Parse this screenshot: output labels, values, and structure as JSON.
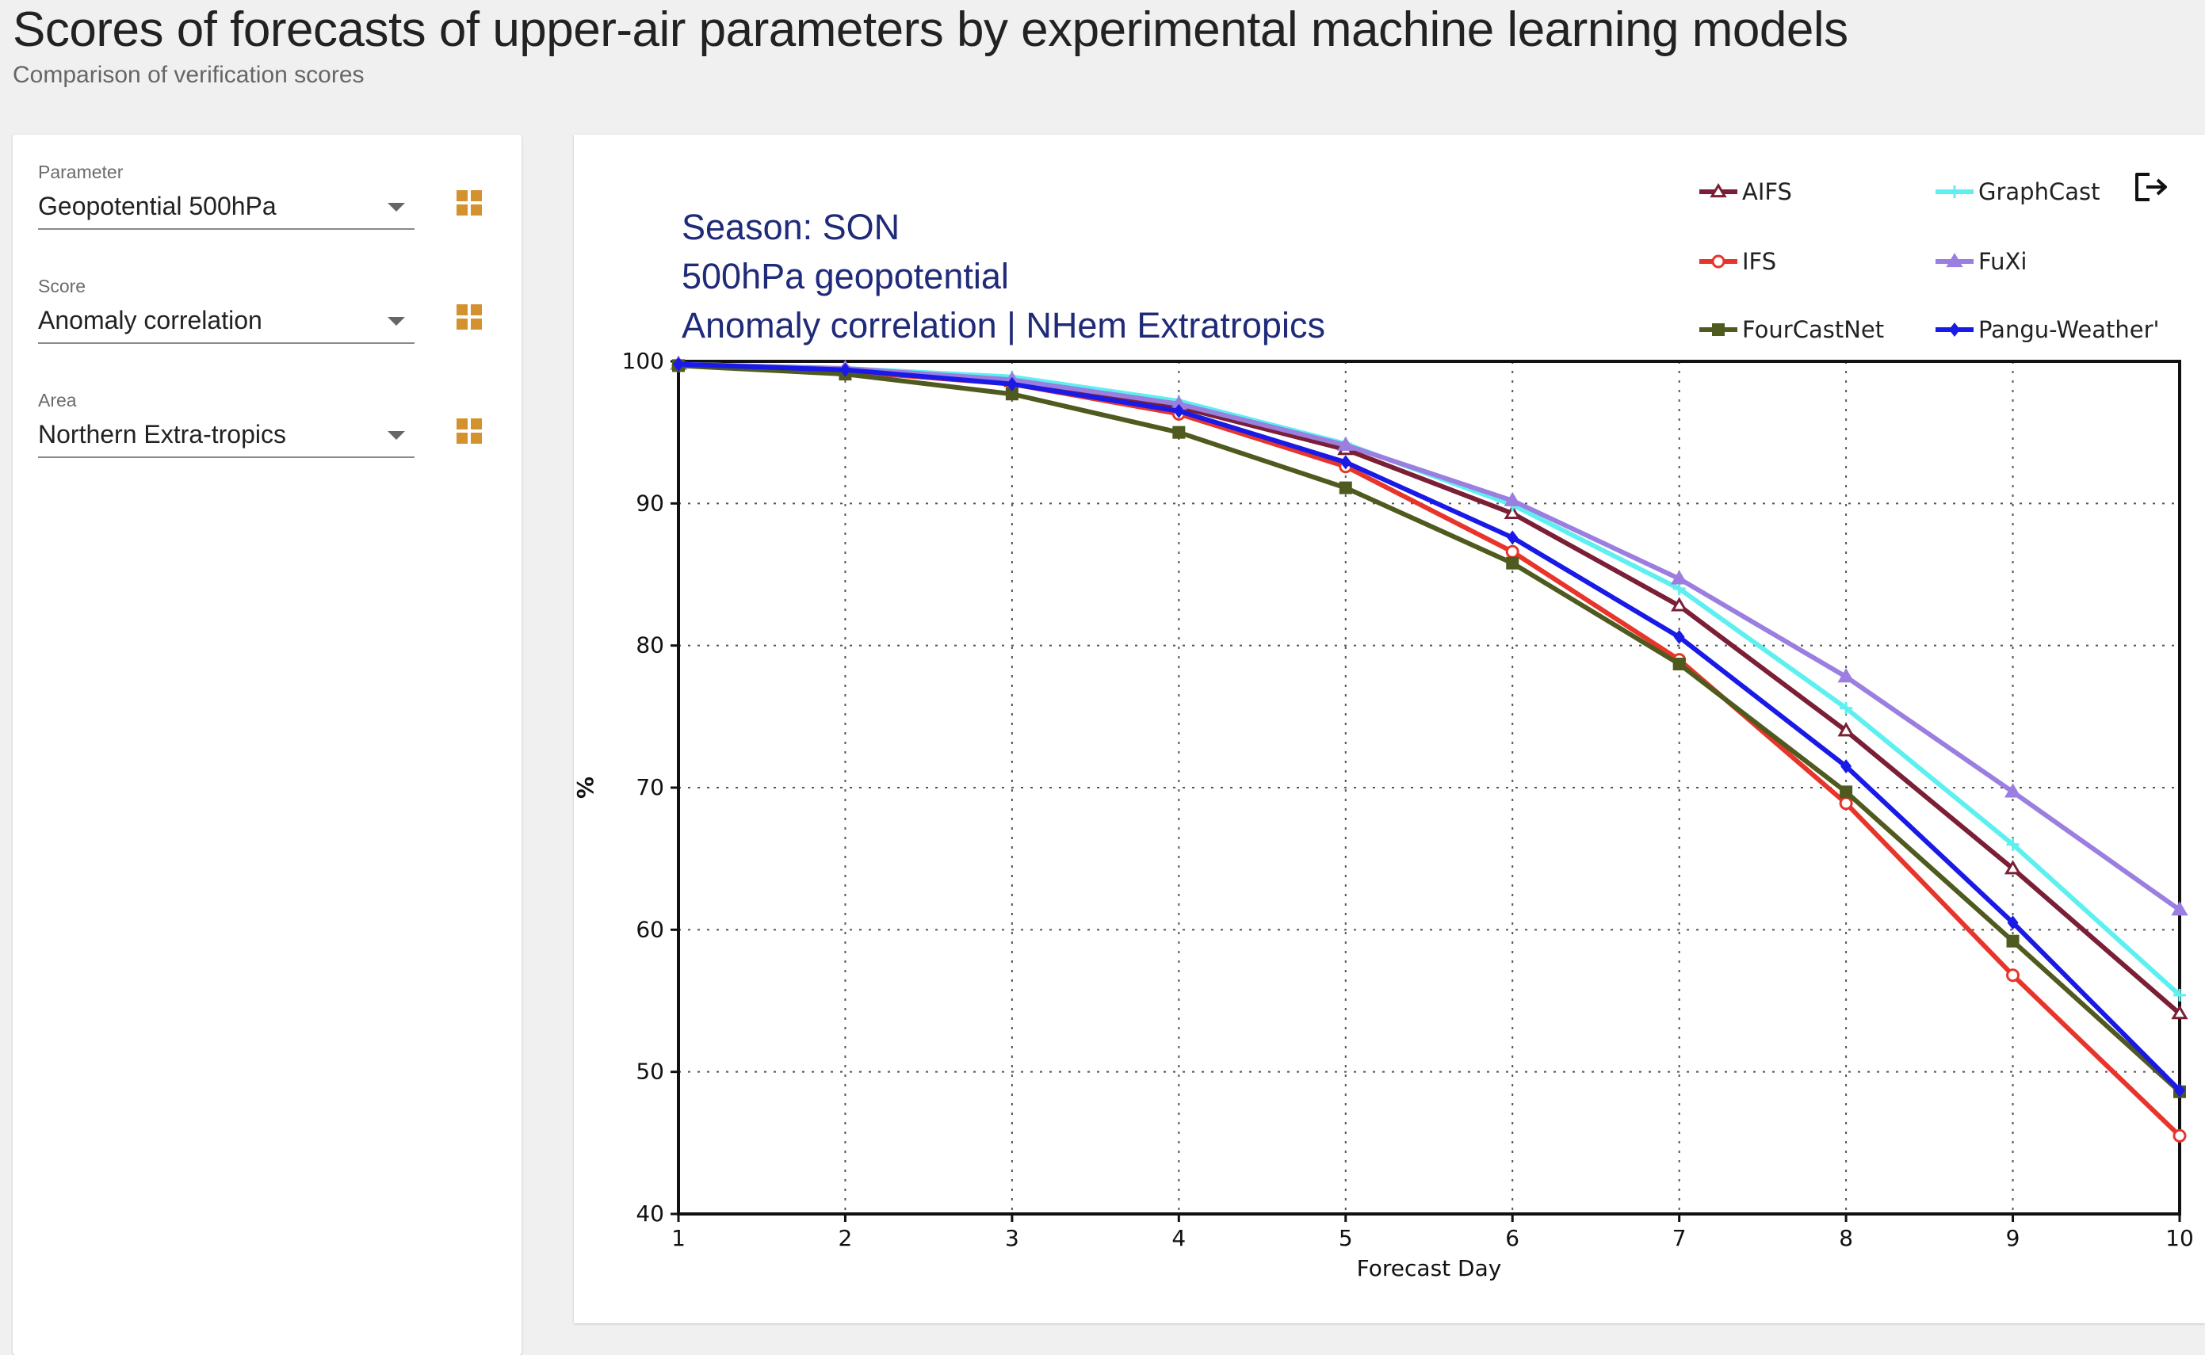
{
  "page": {
    "title": "Scores of forecasts of upper-air parameters by experimental machine learning models",
    "subtitle": "Comparison of verification scores"
  },
  "filters": [
    {
      "label": "Parameter",
      "value": "Geopotential 500hPa",
      "icon": "grid-icon"
    },
    {
      "label": "Score",
      "value": "Anomaly correlation",
      "icon": "grid-icon"
    },
    {
      "label": "Area",
      "value": "Northern Extra-tropics",
      "icon": "grid-icon"
    }
  ],
  "export": {
    "icon": "export-icon"
  },
  "colors": {
    "accent": "#d4922f",
    "chart_title": "#1f2a78"
  },
  "chart_data": {
    "type": "line",
    "title_lines": [
      "Season: SON",
      "500hPa geopotential",
      "Anomaly correlation | NHem Extratropics"
    ],
    "xlabel": "Forecast Day",
    "ylabel": "%",
    "x": [
      1,
      2,
      3,
      4,
      5,
      6,
      7,
      8,
      9,
      10
    ],
    "xlim": [
      1,
      10
    ],
    "ylim": [
      40,
      100
    ],
    "yticks": [
      40,
      50,
      60,
      70,
      80,
      90,
      100
    ],
    "grid": true,
    "legend_position": "top-right",
    "series": [
      {
        "name": "AIFS",
        "color": "#7a1f35",
        "marker": "triangle-open",
        "values": [
          99.8,
          99.4,
          98.6,
          96.8,
          93.8,
          89.3,
          82.8,
          74.0,
          64.3,
          54.1
        ]
      },
      {
        "name": "GraphCast",
        "color": "#5ef0f0",
        "marker": "cross",
        "values": [
          99.8,
          99.5,
          98.9,
          97.2,
          94.2,
          89.9,
          84.0,
          75.6,
          66.0,
          55.4
        ]
      },
      {
        "name": "IFS",
        "color": "#e8352b",
        "marker": "circle-open",
        "values": [
          99.7,
          99.3,
          98.4,
          96.3,
          92.6,
          86.6,
          79.0,
          68.9,
          56.8,
          45.5
        ]
      },
      {
        "name": "FuXi",
        "color": "#9b7ee0",
        "marker": "triangle",
        "values": [
          99.8,
          99.5,
          98.7,
          97.0,
          94.1,
          90.2,
          84.7,
          77.8,
          69.7,
          61.4
        ]
      },
      {
        "name": "FourCastNet",
        "color": "#4e5a1e",
        "marker": "square",
        "values": [
          99.7,
          99.1,
          97.7,
          95.0,
          91.1,
          85.8,
          78.7,
          69.7,
          59.2,
          48.6
        ]
      },
      {
        "name": "Pangu-Weather'",
        "color": "#1a1ae6",
        "marker": "diamond",
        "values": [
          99.8,
          99.4,
          98.4,
          96.5,
          92.9,
          87.6,
          80.6,
          71.5,
          60.5,
          48.7
        ]
      }
    ]
  }
}
